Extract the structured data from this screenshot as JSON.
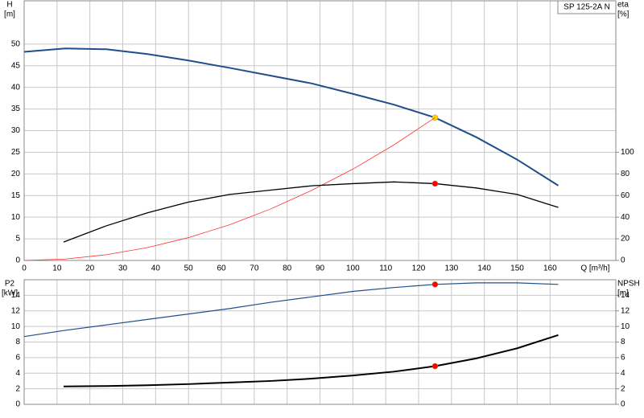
{
  "chart_data": [
    {
      "type": "line",
      "title": "SP 125-2A N",
      "ylabel": "H",
      "yunit": "[m]",
      "y2label": "eta",
      "y2unit": "[%]",
      "xlabel": "Q [m³/h]",
      "xlim": [
        0,
        180
      ],
      "xticks": [
        0,
        10,
        20,
        30,
        40,
        50,
        60,
        70,
        80,
        90,
        100,
        110,
        120,
        130,
        140,
        150,
        160
      ],
      "ylim": [
        0,
        60
      ],
      "yticks": [
        0,
        5,
        10,
        15,
        20,
        25,
        30,
        35,
        40,
        45,
        50
      ],
      "y2lim": [
        0,
        240
      ],
      "y2ticks": [
        0,
        20,
        40,
        60,
        80,
        100
      ],
      "grid": true,
      "xtick_labels": true,
      "series": [
        {
          "color": "#1f4e8c",
          "width": 2,
          "axis": "y",
          "x": [
            0,
            12.5,
            25,
            37.5,
            50,
            62.5,
            75,
            87.5,
            100,
            112.5,
            125,
            137.5,
            150,
            162.5
          ],
          "values": [
            48.2,
            49,
            48.8,
            47.7,
            46.2,
            44.5,
            42.7,
            40.9,
            38.5,
            36,
            33,
            28.5,
            23.3,
            17.3
          ],
          "marker": {
            "x": 125,
            "y": 33,
            "color": "#ffd700"
          }
        },
        {
          "color": "#ff3030",
          "width": 0.8,
          "axis": "y",
          "x": [
            0,
            12.5,
            25,
            37.5,
            50,
            62.5,
            75,
            87.5,
            100,
            112.5,
            125
          ],
          "values": [
            0,
            0.33,
            1.32,
            2.97,
            5.28,
            8.25,
            11.9,
            16.2,
            21.1,
            26.7,
            33
          ]
        },
        {
          "color": "#000000",
          "width": 1.3,
          "axis": "y2",
          "x": [
            12,
            25,
            37.5,
            50,
            62.5,
            75,
            87.5,
            100,
            112.5,
            125,
            137.5,
            150,
            162.5
          ],
          "values": [
            17,
            32,
            44,
            54,
            61,
            65,
            69,
            71,
            72.6,
            71,
            67,
            61,
            49
          ],
          "marker": {
            "x": 125,
            "y": 71,
            "color": "#ff0000"
          }
        }
      ]
    },
    {
      "type": "line",
      "ylabel": "P2",
      "yunit": "[kW]",
      "y2label": "NPSH",
      "y2unit": "[m]",
      "xlim": [
        0,
        180
      ],
      "xticks": [
        0,
        10,
        20,
        30,
        40,
        50,
        60,
        70,
        80,
        90,
        100,
        110,
        120,
        130,
        140,
        150,
        160
      ],
      "ylim": [
        0,
        16
      ],
      "yticks": [
        0,
        2,
        4,
        6,
        8,
        10,
        12,
        14
      ],
      "y2lim": [
        0,
        16
      ],
      "y2ticks": [
        0,
        2,
        4,
        6,
        8,
        10,
        12,
        14
      ],
      "grid": true,
      "xtick_labels": false,
      "series": [
        {
          "color": "#1f4e8c",
          "width": 1.2,
          "axis": "y",
          "x": [
            0,
            12.5,
            25,
            37.5,
            50,
            62.5,
            75,
            87.5,
            100,
            112.5,
            125,
            137.5,
            150,
            162.5
          ],
          "values": [
            8.7,
            9.5,
            10.2,
            10.9,
            11.6,
            12.3,
            13.1,
            13.8,
            14.5,
            15,
            15.4,
            15.6,
            15.6,
            15.4
          ],
          "marker": {
            "x": 125,
            "y": 15.4,
            "color": "#ff0000"
          }
        },
        {
          "color": "#000000",
          "width": 2,
          "axis": "y2",
          "x": [
            12,
            25,
            37.5,
            50,
            62.5,
            75,
            87.5,
            100,
            112.5,
            125,
            137.5,
            150,
            162.5
          ],
          "values": [
            2.3,
            2.35,
            2.45,
            2.6,
            2.8,
            3,
            3.3,
            3.7,
            4.2,
            4.9,
            5.9,
            7.2,
            8.9
          ],
          "marker": {
            "x": 125,
            "y": 4.9,
            "color": "#ff0000"
          }
        }
      ]
    }
  ]
}
